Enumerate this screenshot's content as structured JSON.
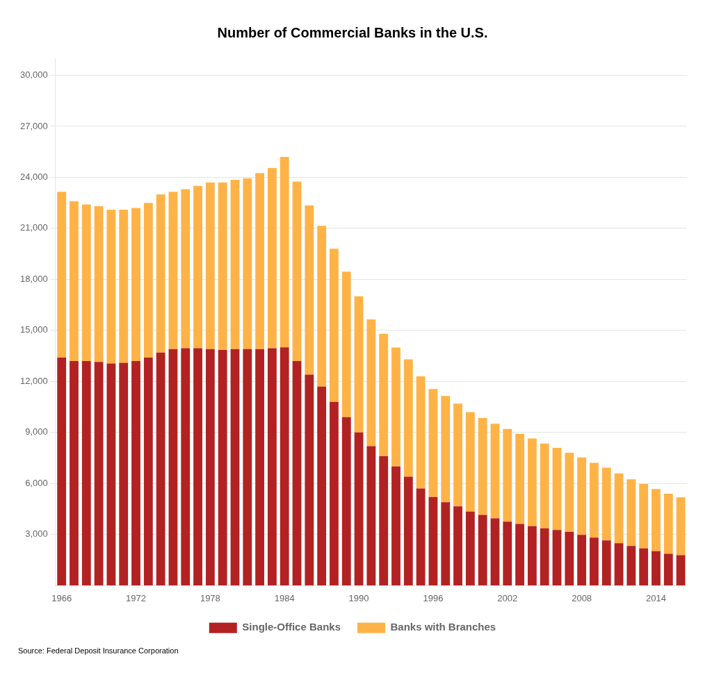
{
  "chart_data": {
    "type": "bar",
    "title": "Number of Commercial Banks in the U.S.",
    "annotations": [
      "Source: Federal Deposit Insurance Corporation"
    ],
    "categories": [
      1966,
      null,
      null,
      null,
      null,
      null,
      1972,
      null,
      null,
      null,
      null,
      null,
      1978,
      null,
      null,
      null,
      null,
      null,
      1984,
      null,
      null,
      null,
      null,
      null,
      1990,
      null,
      null,
      null,
      null,
      null,
      1996,
      null,
      null,
      null,
      null,
      null,
      2002,
      null,
      null,
      null,
      null,
      null,
      2008,
      null,
      null,
      null,
      null,
      null,
      2014,
      null,
      null
    ],
    "series": [
      {
        "name": "Single-Office Banks",
        "color": "#b22222",
        "values": [
          13404,
          13200,
          13200,
          13150,
          13050,
          13100,
          13200,
          13400,
          13700,
          13900,
          13950,
          13950,
          13900,
          13850,
          13900,
          13900,
          13900,
          13950,
          14000,
          13200,
          12400,
          11700,
          10800,
          9900,
          9000,
          8200,
          7600,
          7000,
          6400,
          5700,
          5200,
          4900,
          4650,
          4350,
          4150,
          3950,
          3750,
          3620,
          3490,
          3360,
          3260,
          3150,
          2980,
          2820,
          2650,
          2490,
          2330,
          2180,
          2020,
          1870,
          1780
        ]
      },
      {
        "name": "Banks with Branches",
        "color": "#ffb347",
        "values": [
          9741,
          9400,
          9200,
          9150,
          9050,
          9000,
          9000,
          9100,
          9300,
          9250,
          9350,
          9550,
          9800,
          9850,
          9950,
          10050,
          10350,
          10600,
          11200,
          10550,
          9950,
          9450,
          9000,
          8550,
          8000,
          7450,
          7200,
          6990,
          6900,
          6600,
          6350,
          6250,
          6050,
          5850,
          5700,
          5560,
          5460,
          5300,
          5150,
          4990,
          4830,
          4660,
          4550,
          4390,
          4280,
          4100,
          3920,
          3790,
          3650,
          3530,
          3400
        ]
      }
    ],
    "stacked": true,
    "ylim": [
      0,
      31000
    ],
    "yticks": [
      {
        "value": 3000,
        "label": "3,000"
      },
      {
        "value": 6000,
        "label": "6,000"
      },
      {
        "value": 9000,
        "label": "9,000"
      },
      {
        "value": 12000,
        "label": "12,000"
      },
      {
        "value": 15000,
        "label": "15,000"
      },
      {
        "value": 18000,
        "label": "18,000"
      },
      {
        "value": 21000,
        "label": "21,000"
      },
      {
        "value": 24000,
        "label": "24,000"
      },
      {
        "value": 27000,
        "label": "27,000"
      },
      {
        "value": 30000,
        "label": "30,000"
      }
    ],
    "grid": true,
    "legend": "bottom"
  }
}
